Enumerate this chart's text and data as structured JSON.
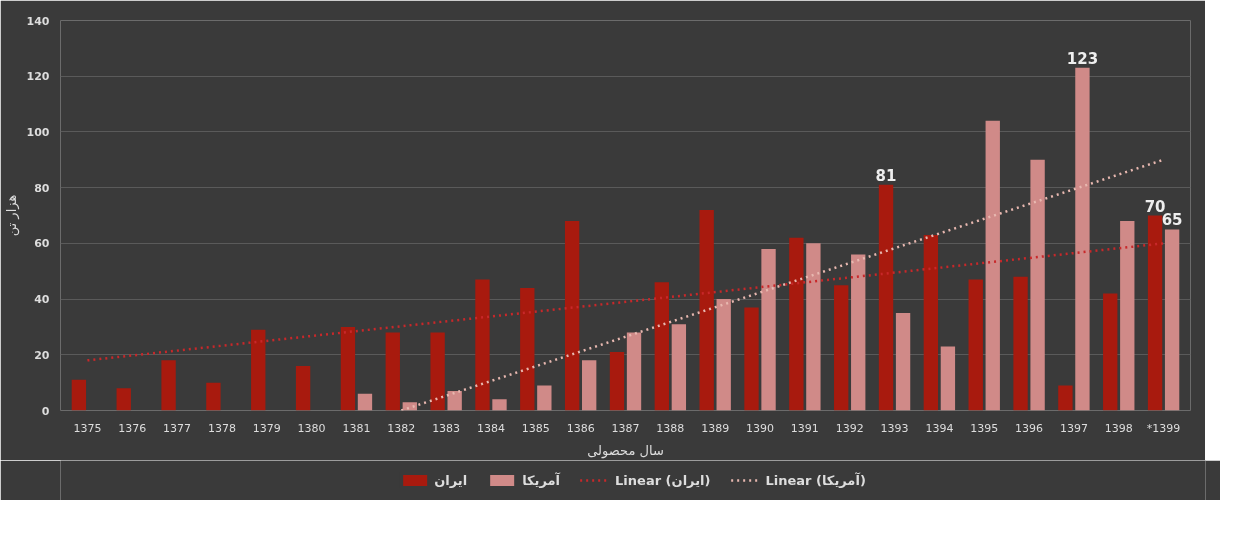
{
  "chart_data": {
    "type": "bar",
    "xlabel": "سال محصولی",
    "ylabel": "هزار تن",
    "categories": [
      "1375",
      "1376",
      "1377",
      "1378",
      "1379",
      "1380",
      "1381",
      "1382",
      "1383",
      "1384",
      "1385",
      "1386",
      "1387",
      "1388",
      "1389",
      "1390",
      "1391",
      "1392",
      "1393",
      "1394",
      "1395",
      "1396",
      "1397",
      "1398",
      "*1399"
    ],
    "series": [
      {
        "name": "ایران",
        "color": "#a81a0e",
        "values": [
          11,
          8,
          18,
          10,
          29,
          16,
          30,
          28,
          28,
          47,
          44,
          68,
          21,
          46,
          72,
          37,
          62,
          45,
          81,
          63,
          47,
          48,
          9,
          42,
          70
        ],
        "value_labels": [
          null,
          null,
          null,
          null,
          null,
          null,
          null,
          null,
          null,
          null,
          null,
          null,
          null,
          null,
          null,
          null,
          null,
          null,
          "81",
          null,
          null,
          null,
          null,
          null,
          "70"
        ]
      },
      {
        "name": "آمریکا",
        "color": "#d08a88",
        "values": [
          null,
          null,
          null,
          null,
          null,
          null,
          6,
          3,
          7,
          4,
          9,
          18,
          28,
          31,
          40,
          58,
          60,
          56,
          35,
          23,
          104,
          90,
          123,
          68,
          65
        ],
        "value_labels": [
          null,
          null,
          null,
          null,
          null,
          null,
          null,
          null,
          null,
          null,
          null,
          null,
          null,
          null,
          null,
          null,
          null,
          null,
          null,
          null,
          null,
          null,
          "123",
          null,
          "65"
        ]
      },
      {
        "name": "Linear (ایران)",
        "type": "line",
        "line_style": "dotted",
        "color": "#c8282a",
        "values": [
          18,
          null,
          null,
          null,
          null,
          null,
          null,
          null,
          null,
          null,
          null,
          null,
          null,
          null,
          null,
          null,
          null,
          null,
          null,
          null,
          null,
          null,
          null,
          null,
          60
        ]
      },
      {
        "name": "Linear (آمریکا)",
        "type": "line",
        "line_style": "dotted",
        "color": "#e8b8b0",
        "values": [
          null,
          null,
          null,
          null,
          null,
          null,
          null,
          0,
          null,
          null,
          null,
          null,
          null,
          null,
          null,
          null,
          null,
          null,
          null,
          null,
          null,
          null,
          null,
          null,
          90
        ]
      }
    ],
    "ylim": [
      0,
      140
    ],
    "yticks": [
      0,
      20,
      40,
      60,
      80,
      100,
      120,
      140
    ],
    "grid": "y",
    "legend": "bottom"
  }
}
